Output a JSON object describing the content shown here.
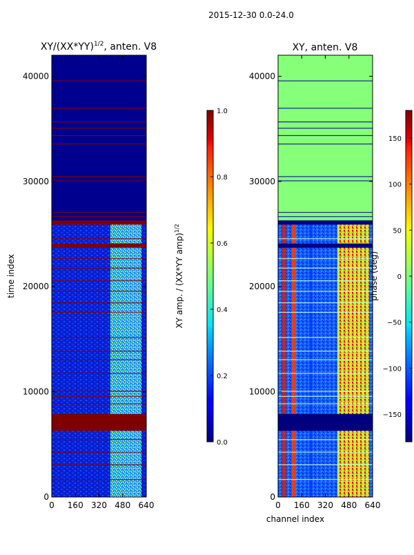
{
  "figure": {
    "suptitle": "2015-12-30 0.0-24.0"
  },
  "chart_data": [
    {
      "type": "heatmap",
      "title": "XY/(XX*YY)",
      "title_sup": "1/2",
      "title_suffix": ", anten. V8",
      "xlabel": "",
      "ylabel": "time index",
      "xlim": [
        0,
        640
      ],
      "ylim": [
        0,
        42000
      ],
      "xticks": [
        0,
        160,
        320,
        480,
        640
      ],
      "yticks": [
        0,
        10000,
        20000,
        30000,
        40000
      ],
      "colorbar": {
        "label": "XY amp. / (XX*YY amp)",
        "label_sup": "1/2",
        "range": [
          0.0,
          1.0
        ],
        "ticks": [
          "0.0",
          "0.2",
          "0.4",
          "0.6",
          "0.8",
          "1.0"
        ],
        "tick_values": [
          0.0,
          0.2,
          0.4,
          0.6,
          0.8,
          1.0
        ],
        "colormap": "jet"
      },
      "flagged_time_bands": [
        [
          6300,
          7900
        ],
        [
          23700,
          24100
        ],
        [
          25900,
          26300
        ]
      ],
      "high_amplitude_channels": [
        [
          370,
          620
        ]
      ]
    },
    {
      "type": "heatmap",
      "title": "XY, anten. V8",
      "xlabel": "channel index",
      "ylabel": "",
      "xlim": [
        0,
        640
      ],
      "ylim": [
        0,
        42000
      ],
      "xticks": [
        0,
        160,
        320,
        480,
        640
      ],
      "yticks": [
        0,
        10000,
        20000,
        30000,
        40000
      ],
      "colorbar": {
        "label": "phase (deg)",
        "range": [
          -180,
          180
        ],
        "ticks": [
          "150",
          "100",
          "50",
          "0",
          "−50",
          "−100",
          "−150"
        ],
        "tick_values": [
          150,
          100,
          50,
          0,
          -50,
          -100,
          -150
        ],
        "colormap": "jet"
      },
      "flagged_time_bands": [
        [
          6300,
          7900
        ],
        [
          23700,
          24100
        ],
        [
          25900,
          26300
        ]
      ],
      "high_phase_channels": [
        [
          30,
          60
        ],
        [
          100,
          120
        ],
        [
          380,
          620
        ]
      ]
    }
  ]
}
